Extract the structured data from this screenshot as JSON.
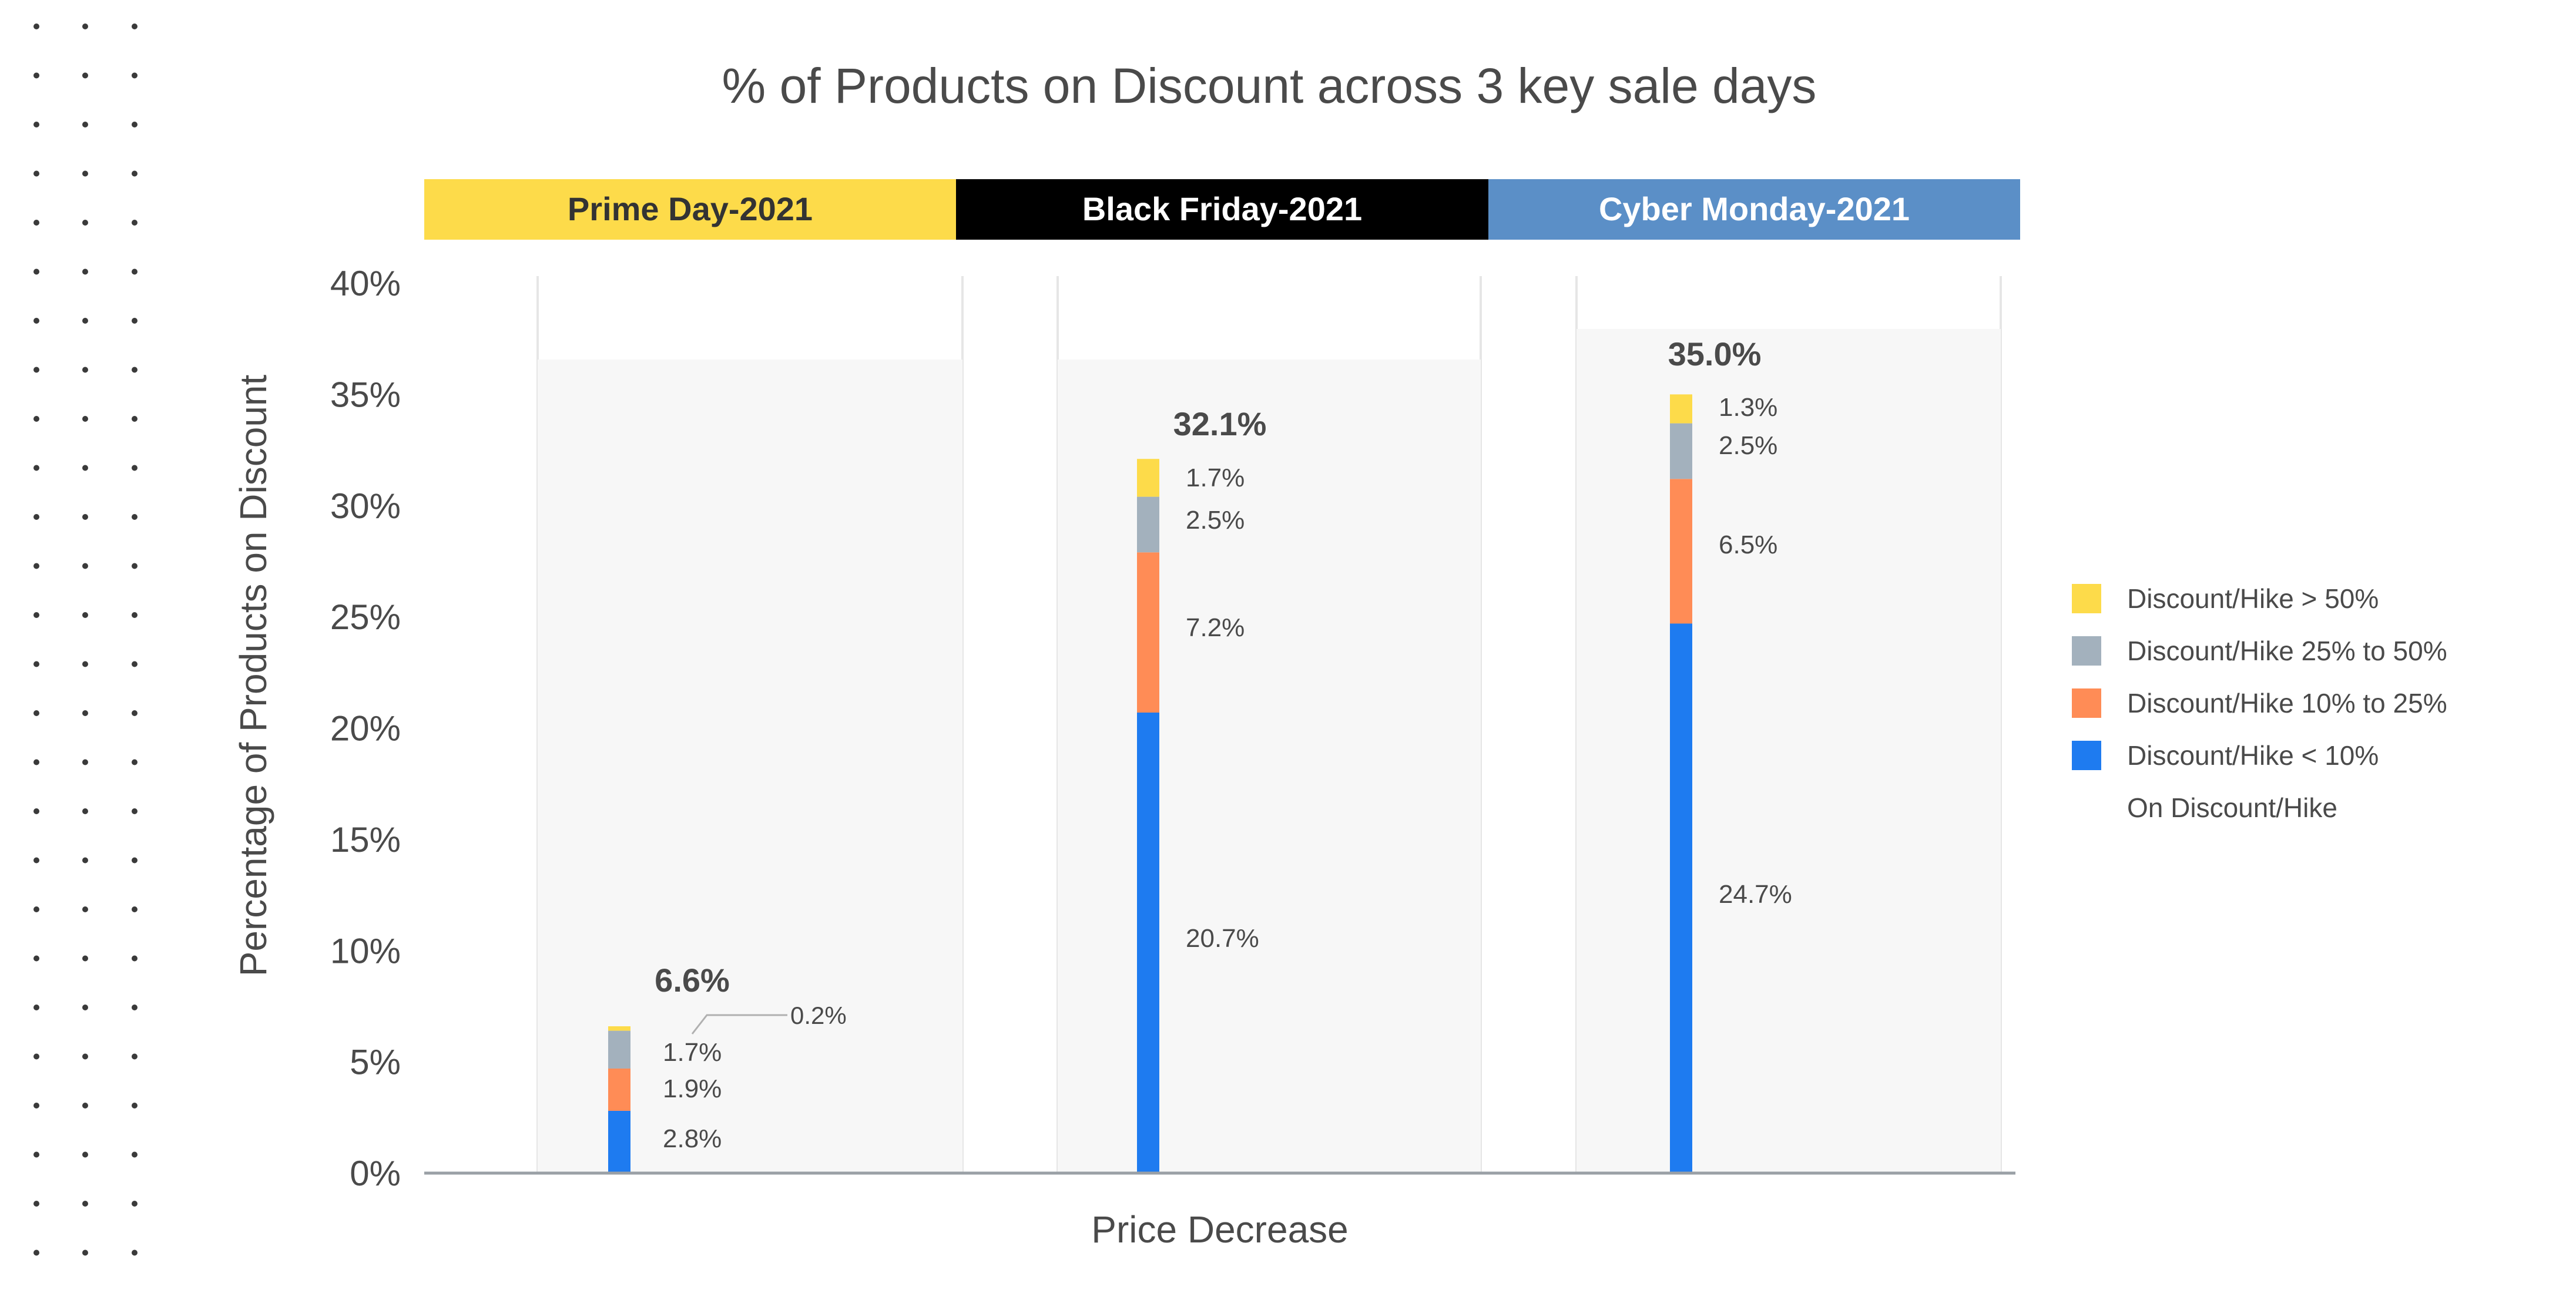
{
  "chart_data": {
    "type": "bar",
    "stacked": true,
    "title": "% of Products on Discount across 3 key sale days",
    "xlabel": "Price Decrease",
    "ylabel": "Percentage of Products on Discount",
    "ylim": [
      0,
      40
    ],
    "yticks": [
      "0%",
      "5%",
      "10%",
      "15%",
      "20%",
      "25%",
      "30%",
      "35%",
      "40%"
    ],
    "grid": false,
    "legend_position": "right",
    "colors": {
      "yellow": "#FDDB4A",
      "gray": "#A3B1BD",
      "orange": "#FF8C56",
      "blue": "#1E7BF0",
      "black": "#000000",
      "header_blue": "#5B8FC7"
    },
    "panels": [
      {
        "label": "Prime Day-2021",
        "header_color": "#FDDB4A",
        "header_text_color": "#333333"
      },
      {
        "label": "Black Friday-2021",
        "header_color": "#000000",
        "header_text_color": "#ffffff"
      },
      {
        "label": "Cyber Monday-2021",
        "header_color": "#5B8FC7",
        "header_text_color": "#ffffff"
      }
    ],
    "categories": [
      "Prime Day-2021",
      "Black Friday-2021",
      "Cyber Monday-2021"
    ],
    "series": [
      {
        "name": "Discount/Hike < 10%",
        "color": "#1E7BF0",
        "values": [
          2.8,
          20.7,
          24.7
        ],
        "labels": [
          "2.8%",
          "20.7%",
          "24.7%"
        ]
      },
      {
        "name": "Discount/Hike 10% to 25%",
        "color": "#FF8C56",
        "values": [
          1.9,
          7.2,
          6.5
        ],
        "labels": [
          "1.9%",
          "7.2%",
          "6.5%"
        ]
      },
      {
        "name": "Discount/Hike 25% to 50%",
        "color": "#A3B1BD",
        "values": [
          1.7,
          2.5,
          2.5
        ],
        "labels": [
          "1.7%",
          "2.5%",
          "2.5%"
        ]
      },
      {
        "name": "Discount/Hike > 50%",
        "color": "#FDDB4A",
        "values": [
          0.2,
          1.7,
          1.3
        ],
        "labels": [
          "0.2%",
          "1.7%",
          "1.3%"
        ]
      }
    ],
    "totals": {
      "values": [
        6.6,
        32.1,
        35.0
      ],
      "labels": [
        "6.6%",
        "32.1%",
        "35.0%"
      ]
    },
    "legend": [
      {
        "label": "Discount/Hike > 50%",
        "color": "#FDDB4A"
      },
      {
        "label": "Discount/Hike 25% to 50%",
        "color": "#A3B1BD"
      },
      {
        "label": "Discount/Hike 10% to 25%",
        "color": "#FF8C56"
      },
      {
        "label": "Discount/Hike < 10%",
        "color": "#1E7BF0"
      },
      {
        "label": "On Discount/Hike",
        "color": ""
      }
    ]
  }
}
